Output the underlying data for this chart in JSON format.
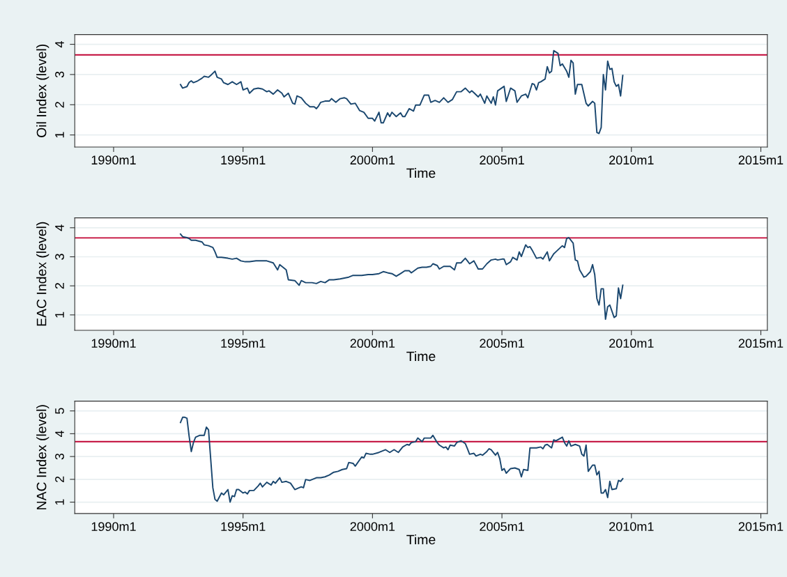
{
  "chart_data": [
    {
      "type": "line",
      "ylabel": "Oil Index (level)",
      "xlabel": "Time",
      "grid": "y",
      "xlim": [
        "1988-07",
        "2015-04"
      ],
      "ylim": [
        0.6,
        4.32
      ],
      "yticks": [
        1,
        2,
        3,
        4
      ],
      "xticks": [
        {
          "value": "1990-01",
          "label": "1990m1"
        },
        {
          "value": "1995-01",
          "label": "1995m1"
        },
        {
          "value": "2000-01",
          "label": "2000m1"
        },
        {
          "value": "2005-01",
          "label": "2005m1"
        },
        {
          "value": "2010-01",
          "label": "2010m1"
        },
        {
          "value": "2015-01",
          "label": "2015m1"
        }
      ],
      "ref_lines": [
        {
          "axis": "y",
          "value": 3.65,
          "color": "#c10534"
        }
      ],
      "series": [
        {
          "color": "#1a476f",
          "x": [
            "1992-08",
            "1992-09",
            "1992-11",
            "1992-12",
            "1993-01",
            "1993-02",
            "1993-04",
            "1993-06",
            "1993-07",
            "1993-09",
            "1993-10",
            "1993-12",
            "1994-01",
            "1994-03",
            "1994-04",
            "1994-06",
            "1994-08",
            "1994-10",
            "1994-12",
            "1995-01",
            "1995-03",
            "1995-04",
            "1995-06",
            "1995-08",
            "1995-10",
            "1995-12",
            "1996-01",
            "1996-03",
            "1996-05",
            "1996-07",
            "1996-08",
            "1996-10",
            "1996-12",
            "1997-01",
            "1997-02",
            "1997-04",
            "1997-06",
            "1997-08",
            "1997-10",
            "1997-11",
            "1997-12",
            "1998-01",
            "1998-03",
            "1998-05",
            "1998-06",
            "1998-08",
            "1998-10",
            "1998-12",
            "1999-01",
            "1999-03",
            "1999-05",
            "1999-07",
            "1999-09",
            "1999-11",
            "2000-01",
            "2000-02",
            "2000-04",
            "2000-05",
            "2000-06",
            "2000-08",
            "2000-09",
            "2000-10",
            "2000-12",
            "2001-02",
            "2001-03",
            "2001-04",
            "2001-06",
            "2001-08",
            "2001-09",
            "2001-11",
            "2002-01",
            "2002-03",
            "2002-04",
            "2002-06",
            "2002-08",
            "2002-10",
            "2002-12",
            "2003-02",
            "2003-04",
            "2003-06",
            "2003-08",
            "2003-10",
            "2003-11",
            "2003-12",
            "2004-02",
            "2004-03",
            "2004-05",
            "2004-06",
            "2004-08",
            "2004-09",
            "2004-10",
            "2004-11",
            "2005-02",
            "2005-03",
            "2005-05",
            "2005-07",
            "2005-08",
            "2005-10",
            "2005-12",
            "2006-01",
            "2006-03",
            "2006-04",
            "2006-05",
            "2006-06",
            "2006-07",
            "2006-09",
            "2006-10",
            "2006-11",
            "2006-12",
            "2007-01",
            "2007-03",
            "2007-04",
            "2007-05",
            "2007-07",
            "2007-08",
            "2007-09",
            "2007-10",
            "2007-11",
            "2007-12",
            "2008-02",
            "2008-04",
            "2008-05",
            "2008-07",
            "2008-08",
            "2008-09",
            "2008-10",
            "2008-11",
            "2008-12",
            "2009-01",
            "2009-02",
            "2009-03",
            "2009-04",
            "2009-05",
            "2009-06",
            "2009-07",
            "2009-08",
            "2009-09"
          ],
          "values": [
            2.67,
            2.55,
            2.6,
            2.74,
            2.79,
            2.73,
            2.79,
            2.88,
            2.94,
            2.91,
            2.97,
            3.11,
            2.91,
            2.85,
            2.73,
            2.67,
            2.76,
            2.67,
            2.76,
            2.49,
            2.55,
            2.38,
            2.52,
            2.55,
            2.52,
            2.43,
            2.46,
            2.35,
            2.49,
            2.38,
            2.26,
            2.38,
            2.05,
            2.02,
            2.29,
            2.23,
            2.05,
            1.93,
            1.93,
            1.87,
            1.96,
            2.08,
            2.12,
            2.12,
            2.2,
            2.08,
            2.2,
            2.23,
            2.2,
            2.02,
            2.05,
            1.81,
            1.75,
            1.55,
            1.55,
            1.46,
            1.75,
            1.4,
            1.4,
            1.73,
            1.61,
            1.75,
            1.61,
            1.73,
            1.61,
            1.61,
            1.87,
            1.79,
            1.99,
            1.99,
            2.32,
            2.32,
            2.08,
            2.14,
            2.08,
            2.23,
            2.08,
            2.17,
            2.43,
            2.43,
            2.55,
            2.4,
            2.46,
            2.4,
            2.26,
            2.35,
            2.05,
            2.29,
            2.05,
            2.26,
            1.99,
            2.46,
            2.61,
            2.11,
            2.55,
            2.46,
            2.08,
            2.29,
            2.35,
            2.23,
            2.7,
            2.67,
            2.49,
            2.73,
            2.76,
            2.85,
            3.26,
            3.05,
            3.11,
            3.79,
            3.7,
            3.29,
            3.35,
            3.11,
            2.91,
            3.47,
            3.38,
            2.35,
            2.67,
            2.67,
            2.05,
            1.96,
            2.11,
            2.05,
            1.08,
            1.05,
            1.25,
            3.0,
            2.49,
            3.44,
            3.17,
            3.2,
            2.76,
            2.61,
            2.67,
            2.29,
            2.97
          ]
        }
      ]
    },
    {
      "type": "line",
      "ylabel": "EAC Index (level)",
      "xlabel": "Time",
      "grid": "y",
      "xlim": [
        "1988-07",
        "2015-04"
      ],
      "ylim": [
        0.47,
        4.34
      ],
      "yticks": [
        1,
        2,
        3,
        4
      ],
      "xticks": [
        {
          "value": "1990-01",
          "label": "1990m1"
        },
        {
          "value": "1995-01",
          "label": "1995m1"
        },
        {
          "value": "2000-01",
          "label": "2000m1"
        },
        {
          "value": "2005-01",
          "label": "2005m1"
        },
        {
          "value": "2010-01",
          "label": "2010m1"
        },
        {
          "value": "2015-01",
          "label": "2015m1"
        }
      ],
      "ref_lines": [
        {
          "axis": "y",
          "value": 3.65,
          "color": "#c10534"
        }
      ],
      "series": [
        {
          "color": "#1a476f",
          "x": [
            "1992-08",
            "1992-09",
            "1992-11",
            "1992-12",
            "1993-01",
            "1993-03",
            "1993-06",
            "1993-07",
            "1993-09",
            "1993-11",
            "1993-12",
            "1994-01",
            "1994-03",
            "1994-06",
            "1994-08",
            "1994-10",
            "1994-12",
            "1995-02",
            "1995-04",
            "1995-07",
            "1995-09",
            "1995-12",
            "1996-03",
            "1996-04",
            "1996-05",
            "1996-06",
            "1996-09",
            "1996-10",
            "1997-01",
            "1997-03",
            "1997-04",
            "1997-06",
            "1997-09",
            "1997-11",
            "1998-01",
            "1998-03",
            "1998-05",
            "1998-07",
            "1998-10",
            "1999-02",
            "1999-04",
            "1999-08",
            "1999-11",
            "2000-01",
            "2000-04",
            "2000-06",
            "2000-08",
            "2000-10",
            "2000-12",
            "2001-02",
            "2001-04",
            "2001-06",
            "2001-07",
            "2001-10",
            "2001-12",
            "2002-02",
            "2002-04",
            "2002-05",
            "2002-07",
            "2002-08",
            "2002-10",
            "2003-01",
            "2003-03",
            "2003-04",
            "2003-06",
            "2003-08",
            "2003-09",
            "2003-10",
            "2003-12",
            "2004-02",
            "2004-04",
            "2004-06",
            "2004-08",
            "2004-10",
            "2004-11",
            "2005-01",
            "2005-02",
            "2005-03",
            "2005-05",
            "2005-06",
            "2005-08",
            "2005-09",
            "2005-10",
            "2005-12",
            "2006-01",
            "2006-02",
            "2006-03",
            "2006-05",
            "2006-07",
            "2006-08",
            "2006-10",
            "2006-11",
            "2007-01",
            "2007-02",
            "2007-05",
            "2007-06",
            "2007-07",
            "2007-08",
            "2007-10",
            "2007-11",
            "2007-12",
            "2008-01",
            "2008-03",
            "2008-04",
            "2008-06",
            "2008-07",
            "2008-08",
            "2008-09",
            "2008-10",
            "2008-11",
            "2008-12",
            "2009-01",
            "2009-02",
            "2009-03",
            "2009-05",
            "2009-06",
            "2009-07",
            "2009-08",
            "2009-09"
          ],
          "values": [
            3.78,
            3.69,
            3.66,
            3.63,
            3.57,
            3.57,
            3.51,
            3.41,
            3.38,
            3.32,
            3.17,
            2.98,
            2.98,
            2.95,
            2.92,
            2.95,
            2.86,
            2.83,
            2.83,
            2.86,
            2.86,
            2.86,
            2.79,
            2.67,
            2.55,
            2.73,
            2.55,
            2.21,
            2.18,
            2.02,
            2.18,
            2.11,
            2.11,
            2.08,
            2.15,
            2.11,
            2.21,
            2.21,
            2.24,
            2.3,
            2.36,
            2.36,
            2.39,
            2.39,
            2.42,
            2.49,
            2.45,
            2.42,
            2.33,
            2.42,
            2.52,
            2.52,
            2.45,
            2.61,
            2.64,
            2.64,
            2.67,
            2.76,
            2.7,
            2.58,
            2.67,
            2.67,
            2.55,
            2.79,
            2.79,
            2.95,
            2.86,
            2.76,
            2.86,
            2.58,
            2.58,
            2.76,
            2.89,
            2.92,
            2.89,
            2.92,
            2.92,
            2.73,
            2.83,
            2.98,
            2.89,
            3.17,
            3.01,
            3.41,
            3.32,
            3.35,
            3.23,
            2.95,
            2.98,
            2.92,
            3.17,
            2.86,
            3.1,
            3.17,
            3.38,
            3.32,
            3.63,
            3.66,
            3.47,
            2.89,
            2.86,
            2.55,
            2.3,
            2.33,
            2.49,
            2.73,
            2.39,
            1.56,
            1.34,
            1.9,
            1.9,
            0.85,
            1.28,
            1.34,
            0.91,
            0.97,
            1.93,
            1.56,
            2.02
          ]
        }
      ]
    },
    {
      "type": "line",
      "ylabel": "NAC Index (level)",
      "xlabel": "Time",
      "grid": "y",
      "xlim": [
        "1988-07",
        "2015-04"
      ],
      "ylim": [
        0.5,
        5.43
      ],
      "yticks": [
        1,
        2,
        3,
        4,
        5
      ],
      "xticks": [
        {
          "value": "1990-01",
          "label": "1990m1"
        },
        {
          "value": "1995-01",
          "label": "1995m1"
        },
        {
          "value": "2000-01",
          "label": "2000m1"
        },
        {
          "value": "2005-01",
          "label": "2005m1"
        },
        {
          "value": "2010-01",
          "label": "2010m1"
        },
        {
          "value": "2015-01",
          "label": "2015m1"
        }
      ],
      "ref_lines": [
        {
          "axis": "y",
          "value": 3.65,
          "color": "#c10534"
        }
      ],
      "series": [
        {
          "color": "#1a476f",
          "x": [
            "1992-08",
            "1992-09",
            "1992-10",
            "1992-11",
            "1992-12",
            "1993-01",
            "1993-02",
            "1993-03",
            "1993-05",
            "1993-07",
            "1993-08",
            "1993-09",
            "1993-11",
            "1993-12",
            "1994-01",
            "1994-03",
            "1994-04",
            "1994-06",
            "1994-07",
            "1994-08",
            "1994-09",
            "1994-10",
            "1994-11",
            "1995-01",
            "1995-02",
            "1995-03",
            "1995-04",
            "1995-06",
            "1995-08",
            "1995-09",
            "1995-10",
            "1995-12",
            "1996-02",
            "1996-03",
            "1996-04",
            "1996-06",
            "1996-07",
            "1996-09",
            "1996-11",
            "1997-01",
            "1997-03",
            "1997-04",
            "1997-05",
            "1997-06",
            "1997-08",
            "1997-09",
            "1997-11",
            "1998-01",
            "1998-03",
            "1998-05",
            "1998-07",
            "1998-09",
            "1998-11",
            "1999-01",
            "1999-02",
            "1999-04",
            "1999-05",
            "1999-08",
            "1999-09",
            "1999-10",
            "1999-12",
            "2000-01",
            "2000-04",
            "2000-07",
            "2000-09",
            "2000-11",
            "2001-01",
            "2001-03",
            "2001-05",
            "2001-06",
            "2001-07",
            "2001-09",
            "2001-10",
            "2001-12",
            "2002-01",
            "2002-04",
            "2002-05",
            "2002-07",
            "2002-08",
            "2002-10",
            "2002-11",
            "2002-12",
            "2003-01",
            "2003-03",
            "2003-04",
            "2003-06",
            "2003-08",
            "2003-09",
            "2003-10",
            "2003-12",
            "2004-01",
            "2004-03",
            "2004-04",
            "2004-06",
            "2004-07",
            "2004-08",
            "2004-10",
            "2004-11",
            "2004-12",
            "2005-01",
            "2005-02",
            "2005-03",
            "2005-05",
            "2005-07",
            "2005-09",
            "2005-10",
            "2005-11",
            "2006-01",
            "2006-02",
            "2006-05",
            "2006-07",
            "2006-08",
            "2006-09",
            "2006-10",
            "2006-12",
            "2007-01",
            "2007-02",
            "2007-05",
            "2007-06",
            "2007-07",
            "2007-08",
            "2007-09",
            "2007-11",
            "2008-01",
            "2008-02",
            "2008-03",
            "2008-04",
            "2008-05",
            "2008-07",
            "2008-08",
            "2008-09",
            "2008-10",
            "2008-11",
            "2008-12",
            "2009-01",
            "2009-02",
            "2009-03",
            "2009-04",
            "2009-06",
            "2009-07",
            "2009-08",
            "2009-09"
          ],
          "values": [
            4.49,
            4.72,
            4.72,
            4.68,
            3.89,
            3.22,
            3.61,
            3.85,
            3.93,
            3.93,
            4.29,
            4.17,
            1.63,
            1.12,
            1.04,
            1.4,
            1.32,
            1.55,
            1.0,
            1.28,
            1.24,
            1.55,
            1.55,
            1.4,
            1.44,
            1.36,
            1.51,
            1.51,
            1.71,
            1.83,
            1.67,
            1.87,
            1.75,
            1.91,
            1.83,
            2.07,
            1.87,
            1.91,
            1.83,
            1.55,
            1.63,
            1.67,
            1.63,
            1.99,
            1.95,
            1.99,
            2.07,
            2.07,
            2.11,
            2.19,
            2.31,
            2.35,
            2.43,
            2.47,
            2.74,
            2.7,
            2.58,
            2.98,
            2.94,
            3.14,
            3.1,
            3.1,
            3.18,
            3.3,
            3.18,
            3.3,
            3.18,
            3.42,
            3.53,
            3.5,
            3.61,
            3.65,
            3.81,
            3.65,
            3.81,
            3.81,
            3.93,
            3.61,
            3.5,
            3.38,
            3.42,
            3.3,
            3.5,
            3.46,
            3.61,
            3.69,
            3.57,
            3.34,
            3.1,
            3.14,
            3.02,
            3.1,
            3.06,
            3.22,
            3.34,
            3.3,
            3.06,
            3.18,
            2.9,
            2.39,
            2.47,
            2.27,
            2.47,
            2.5,
            2.43,
            2.11,
            2.43,
            2.39,
            3.38,
            3.38,
            3.42,
            3.34,
            3.5,
            3.53,
            3.38,
            3.73,
            3.69,
            3.85,
            3.61,
            3.46,
            3.69,
            3.46,
            3.53,
            3.46,
            3.1,
            3.02,
            3.5,
            2.35,
            2.62,
            2.62,
            2.19,
            2.35,
            1.4,
            1.4,
            1.55,
            1.2,
            1.91,
            1.55,
            1.59,
            1.95,
            1.91,
            2.03
          ]
        }
      ]
    }
  ]
}
